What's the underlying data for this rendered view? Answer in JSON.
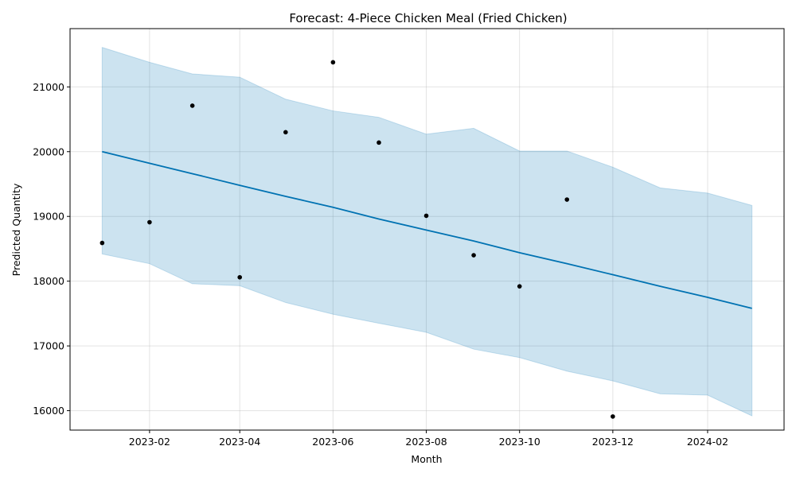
{
  "chart_data": {
    "type": "line",
    "title": "Forecast: 4-Piece Chicken Meal (Fried Chicken)",
    "xlabel": "Month",
    "ylabel": "Predicted Quantity",
    "grid": true,
    "x_ticks": [
      "2023-02",
      "2023-04",
      "2023-06",
      "2023-08",
      "2023-10",
      "2023-12",
      "2024-02"
    ],
    "y_ticks": [
      16000,
      17000,
      18000,
      19000,
      20000,
      21000
    ],
    "xlim": [
      "2022-12-11",
      "2024-03-22"
    ],
    "ylim": [
      15700,
      21900
    ],
    "forecast": {
      "x": [
        "2023-01-01",
        "2023-02-01",
        "2023-03-01",
        "2023-04-01",
        "2023-05-01",
        "2023-06-01",
        "2023-07-01",
        "2023-08-01",
        "2023-09-01",
        "2023-10-01",
        "2023-11-01",
        "2023-12-01",
        "2024-01-01",
        "2024-02-01",
        "2024-03-01"
      ],
      "yhat": [
        20000,
        19820,
        19660,
        19480,
        19310,
        19140,
        18960,
        18790,
        18620,
        18440,
        18270,
        18100,
        17920,
        17750,
        17580
      ],
      "yhat_lower": [
        18420,
        18270,
        17960,
        17930,
        17670,
        17490,
        17350,
        17210,
        16950,
        16820,
        16610,
        16460,
        16260,
        16240,
        15920
      ],
      "yhat_upper": [
        21610,
        21380,
        21200,
        21150,
        20810,
        20630,
        20530,
        20270,
        20360,
        20010,
        20010,
        19760,
        19440,
        19360,
        19170
      ],
      "line_color": "#0072b2",
      "band_color": "#0072b2"
    },
    "actuals": {
      "x": [
        "2023-01-01",
        "2023-02-01",
        "2023-03-01",
        "2023-04-01",
        "2023-05-01",
        "2023-06-01",
        "2023-07-01",
        "2023-08-01",
        "2023-09-01",
        "2023-10-01",
        "2023-11-01",
        "2023-12-01"
      ],
      "y": [
        18590,
        18910,
        20710,
        18060,
        20300,
        21380,
        20140,
        19010,
        18400,
        17920,
        19260,
        15910
      ],
      "color": "#000000"
    }
  }
}
